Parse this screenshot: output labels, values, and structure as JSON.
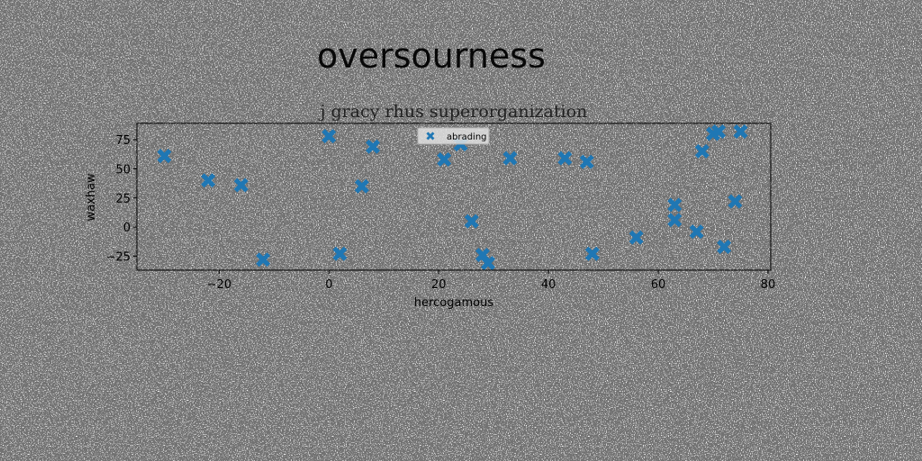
{
  "suptitle": "oversourness",
  "chart_data": {
    "type": "scatter",
    "title": "j gracy rhus superorganization",
    "xlabel": "hercogamous",
    "ylabel": "waxhaw",
    "xlim": [
      -35,
      80.5
    ],
    "ylim": [
      -37,
      89
    ],
    "xticks": [
      -20,
      0,
      20,
      40,
      60,
      80
    ],
    "yticks": [
      -25,
      0,
      25,
      50,
      75
    ],
    "grid": false,
    "legend_position": "top-center",
    "marker": "X",
    "color": "#1f77b4",
    "series": [
      {
        "name": "abrading",
        "points": [
          {
            "x": -30,
            "y": 61
          },
          {
            "x": -22,
            "y": 40
          },
          {
            "x": -16,
            "y": 36
          },
          {
            "x": -12,
            "y": -28
          },
          {
            "x": 0,
            "y": 78
          },
          {
            "x": 2,
            "y": -23
          },
          {
            "x": 6,
            "y": 35
          },
          {
            "x": 8,
            "y": 69
          },
          {
            "x": 21,
            "y": 58
          },
          {
            "x": 24,
            "y": 71
          },
          {
            "x": 26,
            "y": 5
          },
          {
            "x": 28,
            "y": -24
          },
          {
            "x": 29,
            "y": -31
          },
          {
            "x": 33,
            "y": 59
          },
          {
            "x": 43,
            "y": 59
          },
          {
            "x": 47,
            "y": 56
          },
          {
            "x": 48,
            "y": -23
          },
          {
            "x": 56,
            "y": -9
          },
          {
            "x": 63,
            "y": 19
          },
          {
            "x": 63,
            "y": 6
          },
          {
            "x": 67,
            "y": -4
          },
          {
            "x": 68,
            "y": 65
          },
          {
            "x": 70,
            "y": 80
          },
          {
            "x": 71,
            "y": 82
          },
          {
            "x": 72,
            "y": -17
          },
          {
            "x": 74,
            "y": 22
          },
          {
            "x": 75,
            "y": 82
          }
        ]
      }
    ]
  }
}
